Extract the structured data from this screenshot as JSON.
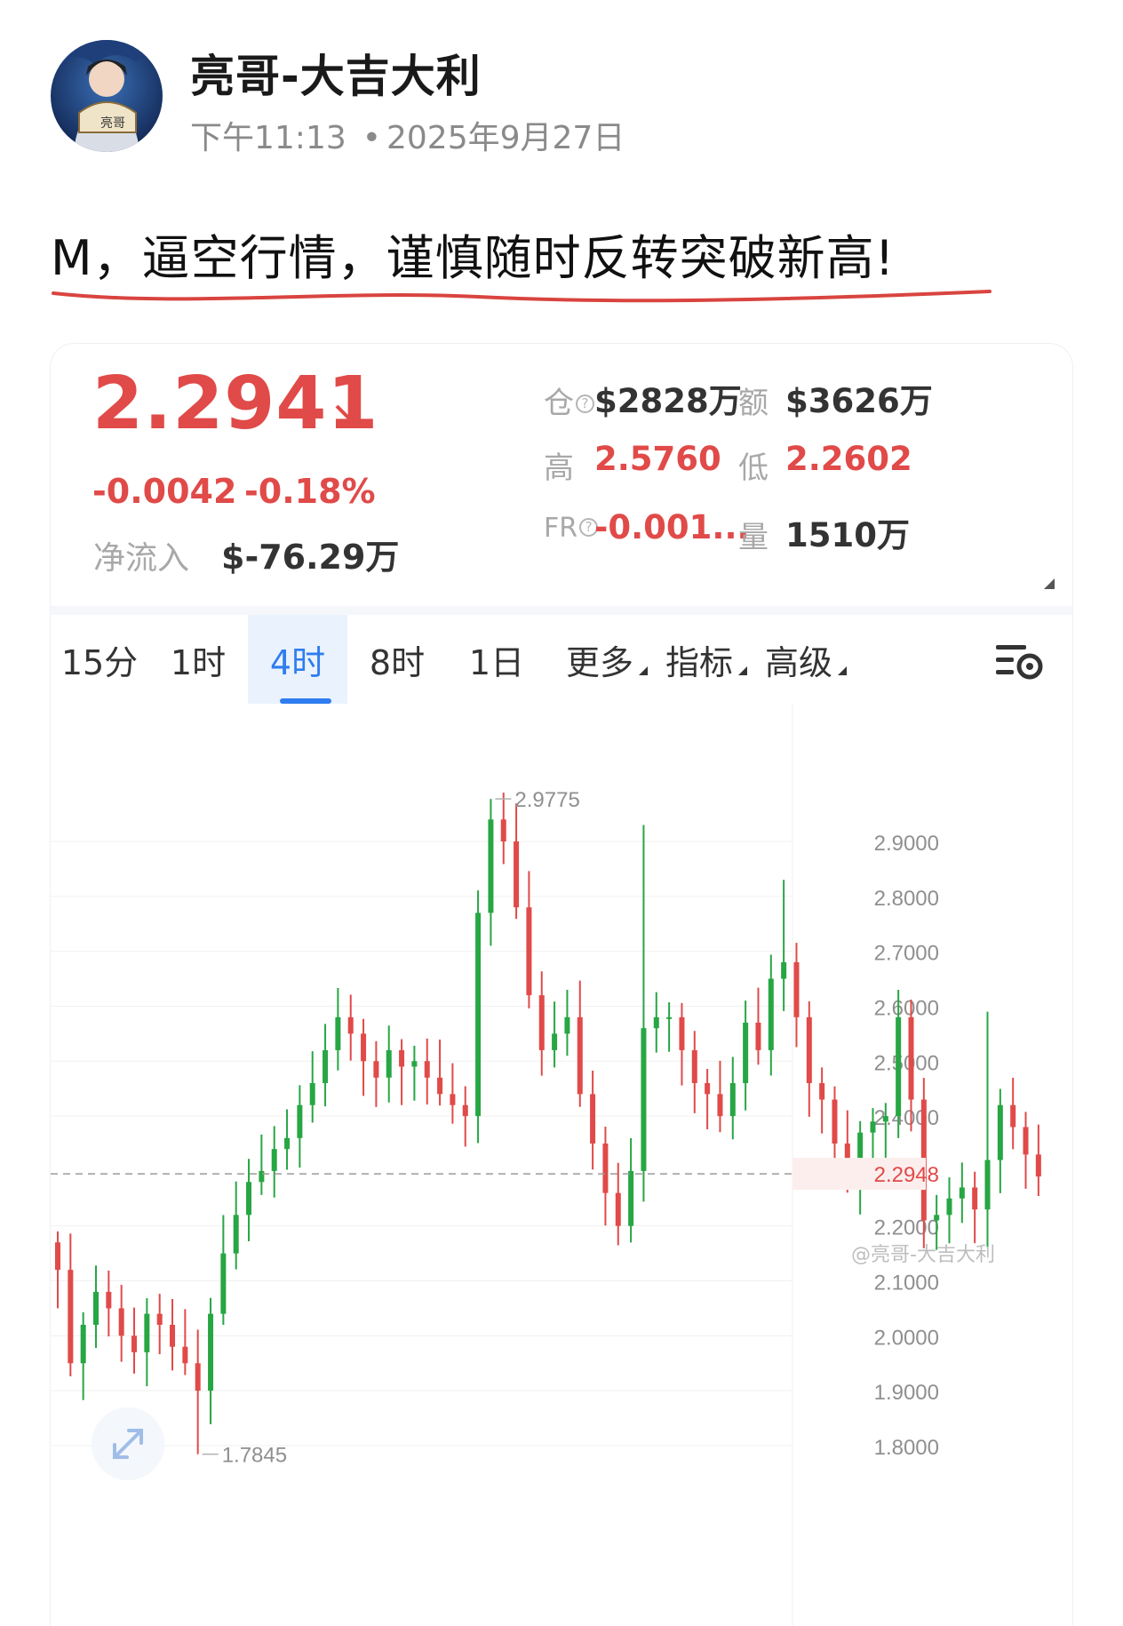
{
  "post": {
    "author": "亮哥-大吉大利",
    "time": "下午11:13",
    "date": "2025年9月27日",
    "separator": "•",
    "text": "M，逼空行情，谨慎随时反转突破新高!"
  },
  "ticker": {
    "price": "2.2941",
    "change_abs": "-0.0042",
    "change_pct": "-0.18%",
    "netflow_label": "净流入",
    "netflow_value": "$-76.29万",
    "stats": {
      "oi_label": "仓",
      "oi_value": "$2828万",
      "turnover_label": "额",
      "turnover_value": "$3626万",
      "high_label": "高",
      "high_value": "2.5760",
      "low_label": "低",
      "low_value": "2.2602",
      "fr_label": "FR",
      "fr_value": "-0.001...",
      "volume_label": "量",
      "volume_value": "1510万"
    },
    "colors": {
      "down": "#e04a48",
      "up": "#27a644",
      "accent": "#2f7df0"
    }
  },
  "tabs": [
    {
      "label": "15分",
      "active": false
    },
    {
      "label": "1时",
      "active": false
    },
    {
      "label": "4时",
      "active": true
    },
    {
      "label": "8时",
      "active": false
    },
    {
      "label": "1日",
      "active": false
    },
    {
      "label": "更多",
      "active": false,
      "dropdown": true
    },
    {
      "label": "指标",
      "active": false,
      "dropdown": true
    },
    {
      "label": "高级",
      "active": false,
      "dropdown": true
    }
  ],
  "chart_data": {
    "type": "candlestick",
    "y_ticks": [
      "2.9000",
      "2.8000",
      "2.7000",
      "2.6000",
      "2.5000",
      "2.4000",
      "2.2000",
      "2.1000",
      "2.0000",
      "1.9000",
      "1.8000"
    ],
    "current_price_label": "2.2948",
    "current_price": 2.2948,
    "max_label": "2.9775",
    "max_value": 2.9775,
    "min_label": "1.7845",
    "min_value": 1.7845,
    "ylim": [
      1.78,
      3.05
    ],
    "grid": true,
    "close_path": [
      2.12,
      1.95,
      2.02,
      2.08,
      2.05,
      2.0,
      1.97,
      2.04,
      2.02,
      1.98,
      1.95,
      1.9,
      2.04,
      2.15,
      2.22,
      2.28,
      2.3,
      2.34,
      2.36,
      2.42,
      2.46,
      2.52,
      2.58,
      2.55,
      2.5,
      2.47,
      2.52,
      2.49,
      2.5,
      2.47,
      2.44,
      2.42,
      2.4,
      2.77,
      2.94,
      2.9,
      2.78,
      2.62,
      2.52,
      2.55,
      2.58,
      2.44,
      2.35,
      2.26,
      2.2,
      2.3,
      2.56,
      2.58,
      2.58,
      2.52,
      2.46,
      2.44,
      2.4,
      2.46,
      2.57,
      2.52,
      2.65,
      2.68,
      2.58,
      2.46,
      2.43,
      2.35,
      2.29,
      2.37,
      2.39,
      2.4,
      2.58,
      2.43,
      2.21,
      2.22,
      2.25,
      2.27,
      2.23,
      2.32,
      2.42,
      2.38,
      2.33,
      2.29
    ]
  },
  "icons": {
    "settings": "chart-settings-icon",
    "expand": "expand-icon",
    "trend": "arrow-down-right-icon"
  },
  "watermark": "@亮哥-大吉大利"
}
